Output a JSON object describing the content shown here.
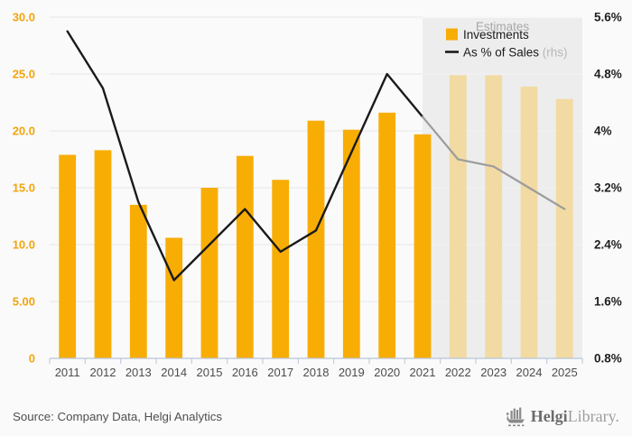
{
  "chart_data": {
    "type": "bar+line",
    "categories": [
      "2011",
      "2012",
      "2013",
      "2014",
      "2015",
      "2016",
      "2017",
      "2018",
      "2019",
      "2020",
      "2021",
      "2022",
      "2023",
      "2024",
      "2025"
    ],
    "series": [
      {
        "name": "Investments",
        "type": "bar",
        "axis": "left",
        "values": [
          17.9,
          18.3,
          13.5,
          10.6,
          15.0,
          17.8,
          15.7,
          20.9,
          20.1,
          21.6,
          19.7,
          24.9,
          24.9,
          23.9,
          22.8
        ],
        "color": "#F8AD05",
        "estimate_color": "#F2DAA3"
      },
      {
        "name": "As % of Sales",
        "type": "line",
        "axis": "right",
        "values": [
          5.4,
          4.6,
          3.0,
          1.9,
          2.4,
          2.9,
          2.3,
          2.6,
          3.7,
          4.8,
          4.2,
          3.6,
          3.5,
          3.2,
          2.9
        ],
        "color": "#1A1A1A",
        "estimate_color": "#9C9C9C"
      }
    ],
    "estimates_from_index": 11,
    "estimates_boundary_index": 10,
    "estimates_label": "Estimates",
    "left_axis": {
      "ticks": [
        "30.0",
        "25.0",
        "20.0",
        "15.0",
        "10.0",
        "5.00",
        "0"
      ],
      "values": [
        30,
        25,
        20,
        15,
        10,
        5,
        0
      ],
      "min": 0,
      "max": 30,
      "color": "#F2A50F"
    },
    "right_axis": {
      "ticks": [
        "5.6%",
        "4.8%",
        "4%",
        "3.2%",
        "2.4%",
        "1.6%",
        "0.8%"
      ],
      "values": [
        5.6,
        4.8,
        4.0,
        3.2,
        2.4,
        1.6,
        0.8
      ],
      "min": 0.8,
      "max": 5.6
    },
    "legend": [
      {
        "label": "Investments",
        "suffix": ""
      },
      {
        "label": "As % of Sales",
        "suffix": " (rhs)"
      }
    ],
    "legend_position": "top-right",
    "grid": true,
    "colors": {
      "background": "#FAFAFA",
      "estimates_shade": "#EDEDED",
      "gridline": "#E7E7E7",
      "gridline_on_shade": "#F4F4F4",
      "axis_line": "#B7C5D9"
    }
  },
  "footer": {
    "source": "Source: Company Data, Helgi Analytics",
    "logo_helgi": "Helgi",
    "logo_library": "Library."
  }
}
